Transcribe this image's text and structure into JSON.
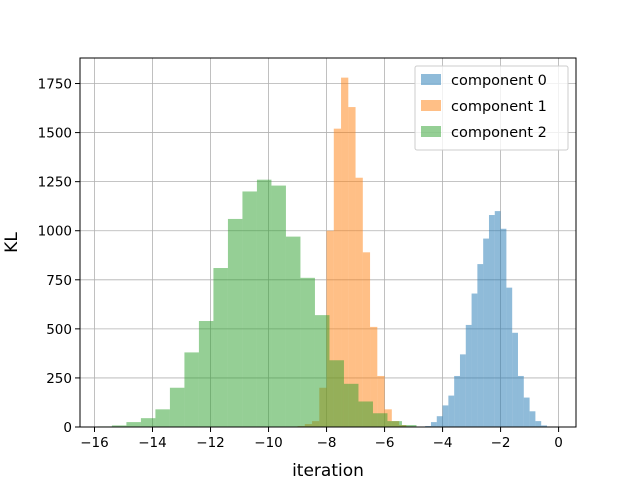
{
  "chart_data": {
    "type": "bar",
    "subtype": "histogram",
    "xlabel": "iteration",
    "ylabel": "KL",
    "xlim": [
      -16.5,
      0.6
    ],
    "ylim": [
      0,
      1880
    ],
    "x_ticks": [
      -16,
      -14,
      -12,
      -10,
      -8,
      -6,
      -4,
      -2,
      0
    ],
    "y_ticks": [
      0,
      250,
      500,
      750,
      1000,
      1250,
      1500,
      1750
    ],
    "grid": true,
    "legend_position": "top-right",
    "bar_alpha": 0.5,
    "series": [
      {
        "name": "component 0",
        "color": "#1f77b4",
        "bins": [
          {
            "x0": -4.6,
            "x1": -4.4,
            "value": 5
          },
          {
            "x0": -4.4,
            "x1": -4.2,
            "value": 25
          },
          {
            "x0": -4.2,
            "x1": -4.0,
            "value": 55
          },
          {
            "x0": -4.0,
            "x1": -3.8,
            "value": 110
          },
          {
            "x0": -3.8,
            "x1": -3.6,
            "value": 160
          },
          {
            "x0": -3.6,
            "x1": -3.4,
            "value": 260
          },
          {
            "x0": -3.4,
            "x1": -3.2,
            "value": 370
          },
          {
            "x0": -3.2,
            "x1": -3.0,
            "value": 520
          },
          {
            "x0": -3.0,
            "x1": -2.8,
            "value": 680
          },
          {
            "x0": -2.8,
            "x1": -2.6,
            "value": 830
          },
          {
            "x0": -2.6,
            "x1": -2.4,
            "value": 960
          },
          {
            "x0": -2.4,
            "x1": -2.2,
            "value": 1080
          },
          {
            "x0": -2.2,
            "x1": -2.0,
            "value": 1100
          },
          {
            "x0": -2.0,
            "x1": -1.8,
            "value": 1010
          },
          {
            "x0": -1.8,
            "x1": -1.6,
            "value": 710
          },
          {
            "x0": -1.6,
            "x1": -1.4,
            "value": 480
          },
          {
            "x0": -1.4,
            "x1": -1.2,
            "value": 260
          },
          {
            "x0": -1.2,
            "x1": -1.0,
            "value": 150
          },
          {
            "x0": -1.0,
            "x1": -0.8,
            "value": 80
          },
          {
            "x0": -0.8,
            "x1": -0.6,
            "value": 30
          },
          {
            "x0": -0.6,
            "x1": -0.4,
            "value": 8
          }
        ]
      },
      {
        "name": "component 1",
        "color": "#ff7f0e",
        "bins": [
          {
            "x0": -9.0,
            "x1": -8.75,
            "value": 5
          },
          {
            "x0": -8.75,
            "x1": -8.5,
            "value": 15
          },
          {
            "x0": -8.5,
            "x1": -8.25,
            "value": 30
          },
          {
            "x0": -8.25,
            "x1": -8.0,
            "value": 200
          },
          {
            "x0": -8.0,
            "x1": -7.75,
            "value": 1000
          },
          {
            "x0": -7.75,
            "x1": -7.5,
            "value": 1520
          },
          {
            "x0": -7.5,
            "x1": -7.25,
            "value": 1780
          },
          {
            "x0": -7.25,
            "x1": -7.0,
            "value": 1630
          },
          {
            "x0": -7.0,
            "x1": -6.75,
            "value": 1270
          },
          {
            "x0": -6.75,
            "x1": -6.5,
            "value": 890
          },
          {
            "x0": -6.5,
            "x1": -6.25,
            "value": 510
          },
          {
            "x0": -6.25,
            "x1": -6.0,
            "value": 260
          },
          {
            "x0": -6.0,
            "x1": -5.75,
            "value": 90
          },
          {
            "x0": -5.75,
            "x1": -5.5,
            "value": 30
          },
          {
            "x0": -5.5,
            "x1": -5.25,
            "value": 10
          },
          {
            "x0": -5.25,
            "x1": -5.0,
            "value": 3
          }
        ]
      },
      {
        "name": "component 2",
        "color": "#2ca02c",
        "bins": [
          {
            "x0": -15.9,
            "x1": -15.4,
            "value": 3
          },
          {
            "x0": -15.4,
            "x1": -14.9,
            "value": 8
          },
          {
            "x0": -14.9,
            "x1": -14.4,
            "value": 25
          },
          {
            "x0": -14.4,
            "x1": -13.9,
            "value": 45
          },
          {
            "x0": -13.9,
            "x1": -13.4,
            "value": 90
          },
          {
            "x0": -13.4,
            "x1": -12.9,
            "value": 200
          },
          {
            "x0": -12.9,
            "x1": -12.4,
            "value": 380
          },
          {
            "x0": -12.4,
            "x1": -11.9,
            "value": 540
          },
          {
            "x0": -11.9,
            "x1": -11.4,
            "value": 810
          },
          {
            "x0": -11.4,
            "x1": -10.9,
            "value": 1060
          },
          {
            "x0": -10.9,
            "x1": -10.4,
            "value": 1200
          },
          {
            "x0": -10.4,
            "x1": -9.9,
            "value": 1260
          },
          {
            "x0": -9.9,
            "x1": -9.4,
            "value": 1230
          },
          {
            "x0": -9.4,
            "x1": -8.9,
            "value": 970
          },
          {
            "x0": -8.9,
            "x1": -8.4,
            "value": 760
          },
          {
            "x0": -8.4,
            "x1": -7.9,
            "value": 570
          },
          {
            "x0": -7.9,
            "x1": -7.4,
            "value": 340
          },
          {
            "x0": -7.4,
            "x1": -6.9,
            "value": 220
          },
          {
            "x0": -6.9,
            "x1": -6.4,
            "value": 130
          },
          {
            "x0": -6.4,
            "x1": -5.9,
            "value": 70
          },
          {
            "x0": -5.9,
            "x1": -5.4,
            "value": 30
          },
          {
            "x0": -5.4,
            "x1": -4.9,
            "value": 10
          }
        ]
      }
    ]
  }
}
